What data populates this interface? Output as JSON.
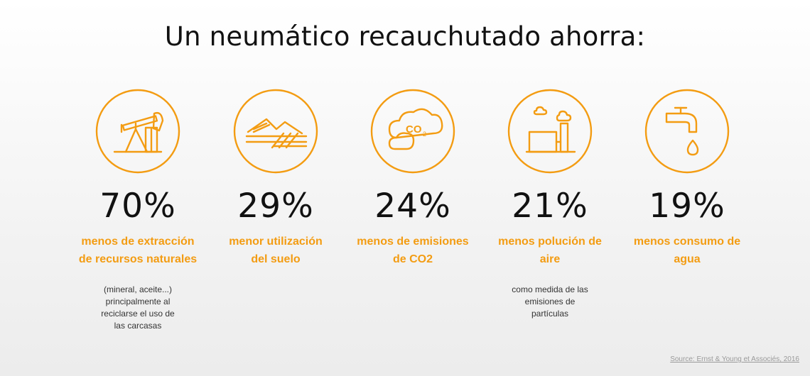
{
  "title": "Un neumático recauchutado ahorra:",
  "accent_color": "#F39C12",
  "items": [
    {
      "icon": "oil-pump-icon",
      "percent": "70%",
      "desc_line1": "menos de extracción",
      "desc_line2": "de recursos naturales",
      "note": "(mineral, aceite...) principalmente al reciclarse el uso de las carcasas"
    },
    {
      "icon": "land-icon",
      "percent": "29%",
      "desc_line1": "menor utilización",
      "desc_line2": "del suelo",
      "note": ""
    },
    {
      "icon": "co2-cloud-icon",
      "co2_label": "CO",
      "co2_sub": "2",
      "percent": "24%",
      "desc_line1": "menos de emisiones",
      "desc_line2": "de CO2",
      "note": ""
    },
    {
      "icon": "factory-icon",
      "percent": "21%",
      "desc_line1": "menos polución de",
      "desc_line2": "aire",
      "note": "como medida de las emisiones de partículas"
    },
    {
      "icon": "faucet-icon",
      "percent": "19%",
      "desc_line1": "menos consumo de",
      "desc_line2": "agua",
      "note": ""
    }
  ],
  "source": "Source: Ernst & Young et Associés, 2016"
}
